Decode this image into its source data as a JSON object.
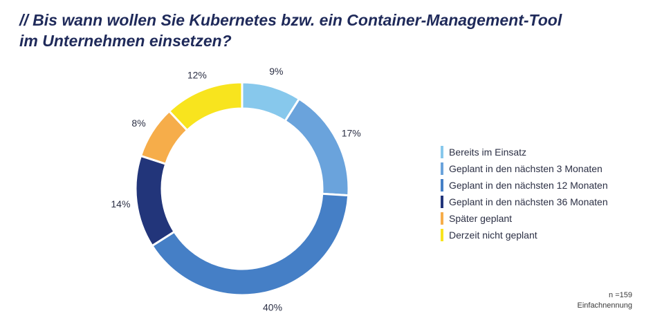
{
  "title_line1": "// Bis wann wollen Sie Kubernetes bzw. ein Container-Management-Tool",
  "title_line2": "im Unternehmen einsetzen?",
  "footnote": {
    "n": "n =159",
    "type": "Einfachnennung"
  },
  "chart_data": {
    "type": "pie",
    "donut": true,
    "title": "// Bis wann wollen Sie Kubernetes bzw. ein Container-Management-Tool im Unternehmen einsetzen?",
    "legend_position": "right",
    "slices": [
      {
        "label": "Bereits im Einsatz",
        "value": 9,
        "value_label": "9%",
        "color": "#87c8ec"
      },
      {
        "label": "Geplant in den nächsten 3 Monaten",
        "value": 17,
        "value_label": "17%",
        "color": "#6aa3dc"
      },
      {
        "label": "Geplant in den nächsten 12 Monaten",
        "value": 40,
        "value_label": "40%",
        "color": "#457fc6"
      },
      {
        "label": "Geplant in den nächsten 36 Monaten",
        "value": 14,
        "value_label": "14%",
        "color": "#22357a"
      },
      {
        "label": "Später geplant",
        "value": 8,
        "value_label": "8%",
        "color": "#f6ad4a"
      },
      {
        "label": "Derzeit nicht geplant",
        "value": 12,
        "value_label": "12%",
        "color": "#f8e41e"
      }
    ]
  }
}
